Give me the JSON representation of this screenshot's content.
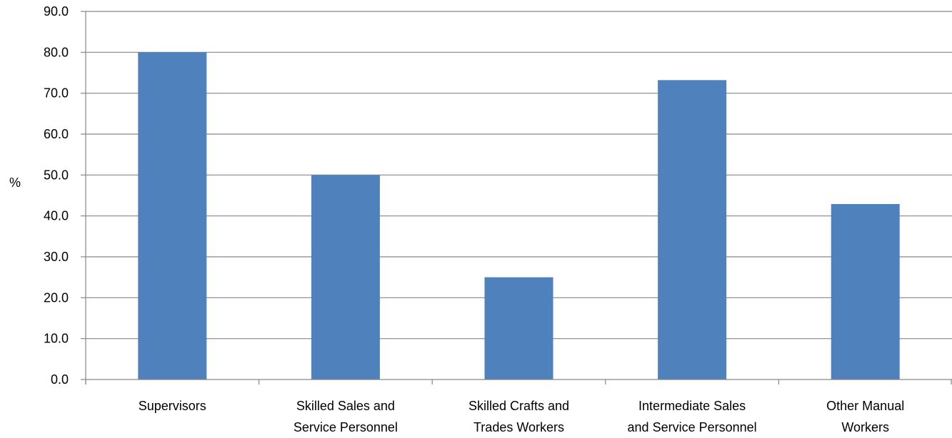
{
  "chart_data": {
    "type": "bar",
    "title": "",
    "xlabel": "",
    "ylabel": "%",
    "ylim": [
      0,
      90
    ],
    "ytick_step": 10,
    "ytick_format_decimals": 1,
    "grid": true,
    "legend": "none",
    "bar_color": "#4F81BD",
    "categories": [
      [
        "Supervisors"
      ],
      [
        "Skilled Sales and",
        "Service Personnel"
      ],
      [
        "Skilled Crafts and",
        "Trades Workers"
      ],
      [
        "Intermediate Sales",
        "and Service Personnel"
      ],
      [
        "Other Manual",
        "Workers"
      ]
    ],
    "values": [
      80.0,
      50.0,
      25.0,
      73.2,
      42.9
    ]
  }
}
